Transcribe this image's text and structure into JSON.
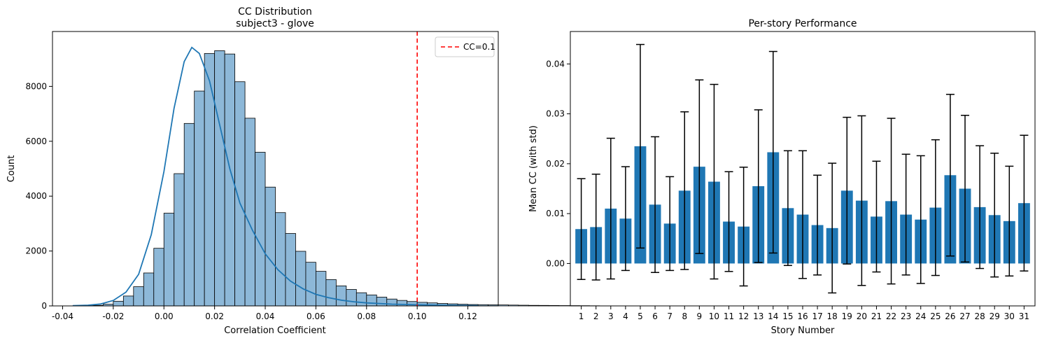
{
  "chart_data": [
    {
      "type": "histogram",
      "title_line1": "CC Distribution",
      "title_line2": "subject3 - glove",
      "xlabel": "Correlation Coefficient",
      "ylabel": "Count",
      "xlim": [
        -0.044,
        0.132
      ],
      "ylim": [
        0,
        10000
      ],
      "xticks": [
        "-0.04",
        "-0.02",
        "0.00",
        "0.02",
        "0.04",
        "0.06",
        "0.08",
        "0.10",
        "0.12"
      ],
      "yticks": [
        "0",
        "2000",
        "4000",
        "6000",
        "8000"
      ],
      "bin_start": -0.036,
      "bin_width": 0.004,
      "counts": [
        5,
        10,
        20,
        60,
        170,
        360,
        700,
        1200,
        2100,
        3380,
        4820,
        6650,
        7830,
        9200,
        9300,
        9180,
        8170,
        6840,
        5600,
        4330,
        3400,
        2640,
        1990,
        1590,
        1260,
        960,
        730,
        600,
        480,
        400,
        320,
        250,
        200,
        160,
        130,
        110,
        90,
        75,
        60,
        50,
        45,
        40,
        35,
        30,
        25,
        20,
        18,
        15,
        12,
        10,
        8,
        5
      ],
      "kde": [
        [
          -0.036,
          10
        ],
        [
          -0.03,
          25
        ],
        [
          -0.025,
          70
        ],
        [
          -0.02,
          200
        ],
        [
          -0.015,
          500
        ],
        [
          -0.01,
          1150
        ],
        [
          -0.005,
          2600
        ],
        [
          0.0,
          4900
        ],
        [
          0.004,
          7200
        ],
        [
          0.008,
          8900
        ],
        [
          0.011,
          9420
        ],
        [
          0.014,
          9200
        ],
        [
          0.018,
          8200
        ],
        [
          0.022,
          6600
        ],
        [
          0.026,
          5000
        ],
        [
          0.03,
          3750
        ],
        [
          0.035,
          2750
        ],
        [
          0.04,
          1900
        ],
        [
          0.045,
          1320
        ],
        [
          0.05,
          900
        ],
        [
          0.055,
          620
        ],
        [
          0.06,
          420
        ],
        [
          0.065,
          300
        ],
        [
          0.07,
          210
        ],
        [
          0.075,
          150
        ],
        [
          0.08,
          110
        ],
        [
          0.09,
          65
        ],
        [
          0.1,
          40
        ],
        [
          0.11,
          25
        ],
        [
          0.124,
          10
        ]
      ],
      "vline": {
        "x": 0.1,
        "label": "CC=0.1",
        "color": "#ff0000"
      },
      "bar_color": "#8db8d8",
      "kde_color": "#1f77b4",
      "legend_position": "top-right"
    },
    {
      "type": "bar",
      "title": "Per-story Performance",
      "xlabel": "Story Number",
      "ylabel": "Mean CC (with std)",
      "ylim": [
        -0.0085,
        0.0465
      ],
      "yticks": [
        "0.00",
        "0.01",
        "0.02",
        "0.03",
        "0.04"
      ],
      "categories": [
        "1",
        "2",
        "3",
        "4",
        "5",
        "6",
        "7",
        "8",
        "9",
        "10",
        "11",
        "12",
        "13",
        "14",
        "15",
        "16",
        "17",
        "18",
        "19",
        "20",
        "21",
        "22",
        "23",
        "24",
        "25",
        "26",
        "27",
        "28",
        "29",
        "30",
        "31"
      ],
      "values": [
        0.0069,
        0.0073,
        0.011,
        0.009,
        0.0235,
        0.0118,
        0.008,
        0.0146,
        0.0194,
        0.0164,
        0.0084,
        0.0074,
        0.0155,
        0.0223,
        0.0111,
        0.0098,
        0.0077,
        0.0071,
        0.0146,
        0.0126,
        0.0094,
        0.0125,
        0.0098,
        0.0088,
        0.0112,
        0.0177,
        0.015,
        0.0113,
        0.0097,
        0.0085,
        0.0121
      ],
      "errors": [
        0.0101,
        0.0106,
        0.0141,
        0.0104,
        0.0204,
        0.0136,
        0.0094,
        0.0158,
        0.0174,
        0.0195,
        0.01,
        0.0119,
        0.0153,
        0.0202,
        0.0115,
        0.0128,
        0.01,
        0.013,
        0.0147,
        0.017,
        0.0111,
        0.0166,
        0.0121,
        0.0128,
        0.0136,
        0.0162,
        0.0147,
        0.0123,
        0.0124,
        0.011,
        0.0136
      ],
      "bar_color": "#1f77b4"
    }
  ]
}
